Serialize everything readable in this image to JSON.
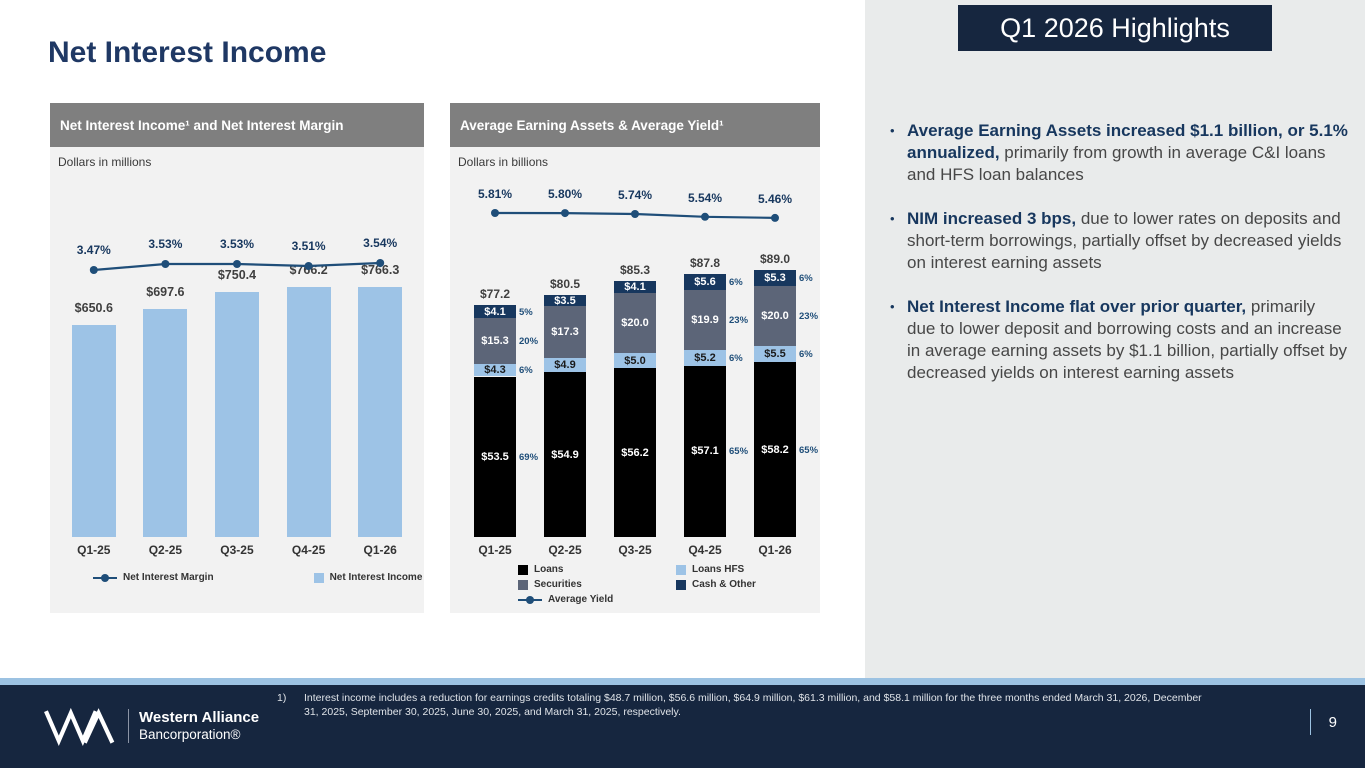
{
  "page": {
    "title": "Net Interest Income",
    "page_number": "9"
  },
  "highlights": {
    "title": "Q1 2026 Highlights",
    "bullets": [
      {
        "lead": "Average Earning Assets increased $1.1 billion, or 5.1% annualized,",
        "rest": " primarily from growth in average C&I loans and HFS loan balances"
      },
      {
        "lead": "NIM increased 3 bps,",
        "rest": " due to lower rates on deposits and short-term borrowings, partially offset by decreased yields on interest earning assets"
      },
      {
        "lead": "Net Interest Income flat over prior quarter,",
        "rest": " primarily due to lower deposit and borrowing costs and an increase in average earning assets by $1.1 billion, partially offset by decreased yields on interest earning assets"
      }
    ]
  },
  "footer": {
    "footnote_number": "1)",
    "footnote_text": "Interest income includes a reduction for earnings credits totaling $48.7 million, $56.6 million, $64.9 million, $61.3 million, and $58.1 million for the three months ended March 31, 2026, December 31, 2025, September 30, 2025, June 30, 2025, and March 31, 2025, respectively.",
    "logo_name": "Western Alliance",
    "logo_sub": "Bancorporation®"
  },
  "chart_data": [
    {
      "type": "bar",
      "title": "Net Interest Income¹ and Net Interest Margin",
      "subtitle": "Dollars in millions",
      "categories": [
        "Q1-25",
        "Q2-25",
        "Q3-25",
        "Q4-25",
        "Q1-26"
      ],
      "series": [
        {
          "name": "Net Interest Income",
          "type": "bar",
          "values": [
            650.6,
            697.6,
            750.4,
            766.2,
            766.3
          ],
          "labels": [
            "$650.6",
            "$697.6",
            "$750.4",
            "$766.2",
            "$766.3"
          ],
          "color": "#9dc3e6"
        },
        {
          "name": "Net Interest Margin",
          "type": "line",
          "values": [
            3.47,
            3.53,
            3.53,
            3.51,
            3.54
          ],
          "labels": [
            "3.47%",
            "3.53%",
            "3.53%",
            "3.51%",
            "3.54%"
          ],
          "color": "#1f4e79"
        }
      ],
      "legend_position": "bottom",
      "grid": false
    },
    {
      "type": "stacked-bar",
      "title": "Average Earning Assets & Average Yield¹",
      "subtitle": "Dollars in billions",
      "categories": [
        "Q1-25",
        "Q2-25",
        "Q3-25",
        "Q4-25",
        "Q1-26"
      ],
      "totals": [
        "$77.2",
        "$80.5",
        "$85.3",
        "$87.8",
        "$89.0"
      ],
      "series": [
        {
          "name": "Loans",
          "color": "#000000",
          "text_color": "#ffffff",
          "values": [
            53.5,
            54.9,
            56.2,
            57.1,
            58.2
          ],
          "labels": [
            "$53.5",
            "$54.9",
            "$56.2",
            "$57.1",
            "$58.2"
          ],
          "pcts": [
            "69%",
            "",
            "",
            "65%",
            "65%"
          ]
        },
        {
          "name": "Loans HFS",
          "color": "#9dc3e6",
          "text_color": "#1a1a1a",
          "values": [
            4.3,
            4.9,
            5.0,
            5.2,
            5.5
          ],
          "labels": [
            "$4.3",
            "$4.9",
            "$5.0",
            "$5.2",
            "$5.5"
          ],
          "pcts": [
            "6%",
            "",
            "",
            "6%",
            "6%"
          ]
        },
        {
          "name": "Securities",
          "color": "#5c6578",
          "text_color": "#ffffff",
          "values": [
            15.3,
            17.3,
            20.0,
            19.9,
            20.0
          ],
          "labels": [
            "$15.3",
            "$17.3",
            "$20.0",
            "$19.9",
            "$20.0"
          ],
          "pcts": [
            "20%",
            "",
            "",
            "23%",
            "23%"
          ]
        },
        {
          "name": "Cash & Other",
          "color": "#17375e",
          "text_color": "#ffffff",
          "values": [
            4.1,
            3.5,
            4.1,
            5.6,
            5.3
          ],
          "labels": [
            "$4.1",
            "$3.5",
            "$4.1",
            "$5.6",
            "$5.3"
          ],
          "pcts": [
            "5%",
            "",
            "",
            "6%",
            "6%"
          ]
        }
      ],
      "yield_line": {
        "name": "Average Yield",
        "color": "#1f4e79",
        "values": [
          5.81,
          5.8,
          5.74,
          5.54,
          5.46
        ],
        "labels": [
          "5.81%",
          "5.80%",
          "5.74%",
          "5.54%",
          "5.46%"
        ]
      },
      "legend_position": "bottom",
      "grid": false
    }
  ]
}
